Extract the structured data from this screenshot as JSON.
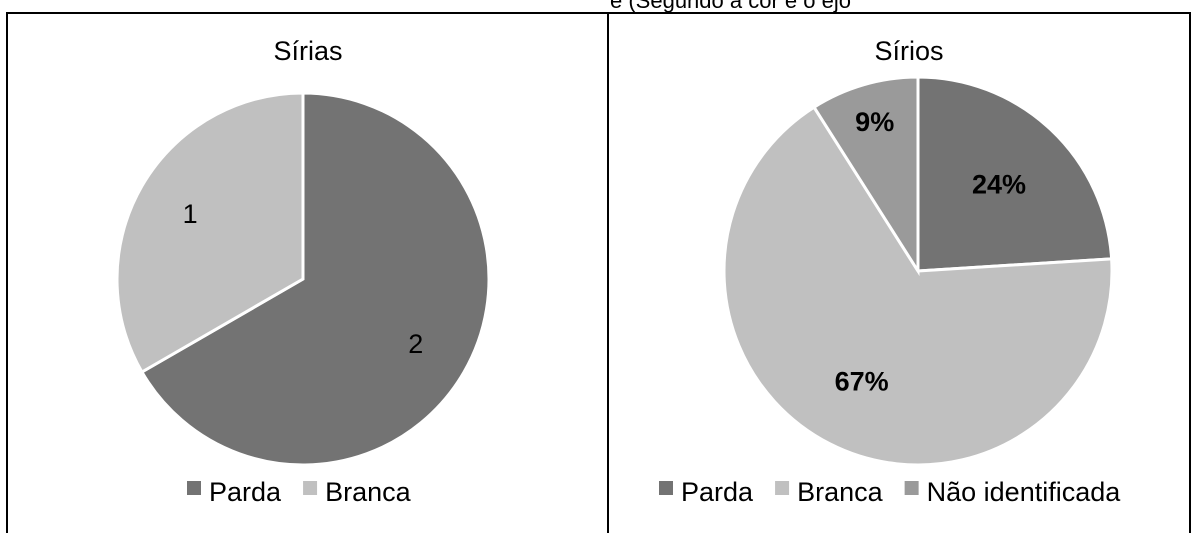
{
  "top_strip_text": "e (Segundo a cor e o ejo",
  "chart_data": [
    {
      "type": "pie",
      "title": "Sírias",
      "categories": [
        "Parda",
        "Branca"
      ],
      "values": [
        2,
        1
      ],
      "data_labels": [
        "2",
        "1"
      ],
      "colors": [
        "#737373",
        "#c0c0c0"
      ],
      "legend_position": "bottom"
    },
    {
      "type": "pie",
      "title": "Sírios",
      "categories": [
        "Parda",
        "Branca",
        "Não identificada"
      ],
      "values": [
        24,
        67,
        9
      ],
      "data_labels": [
        "24%",
        "67%",
        "9%"
      ],
      "colors": [
        "#737373",
        "#c0c0c0",
        "#9a9a9a"
      ],
      "legend_position": "bottom"
    }
  ]
}
